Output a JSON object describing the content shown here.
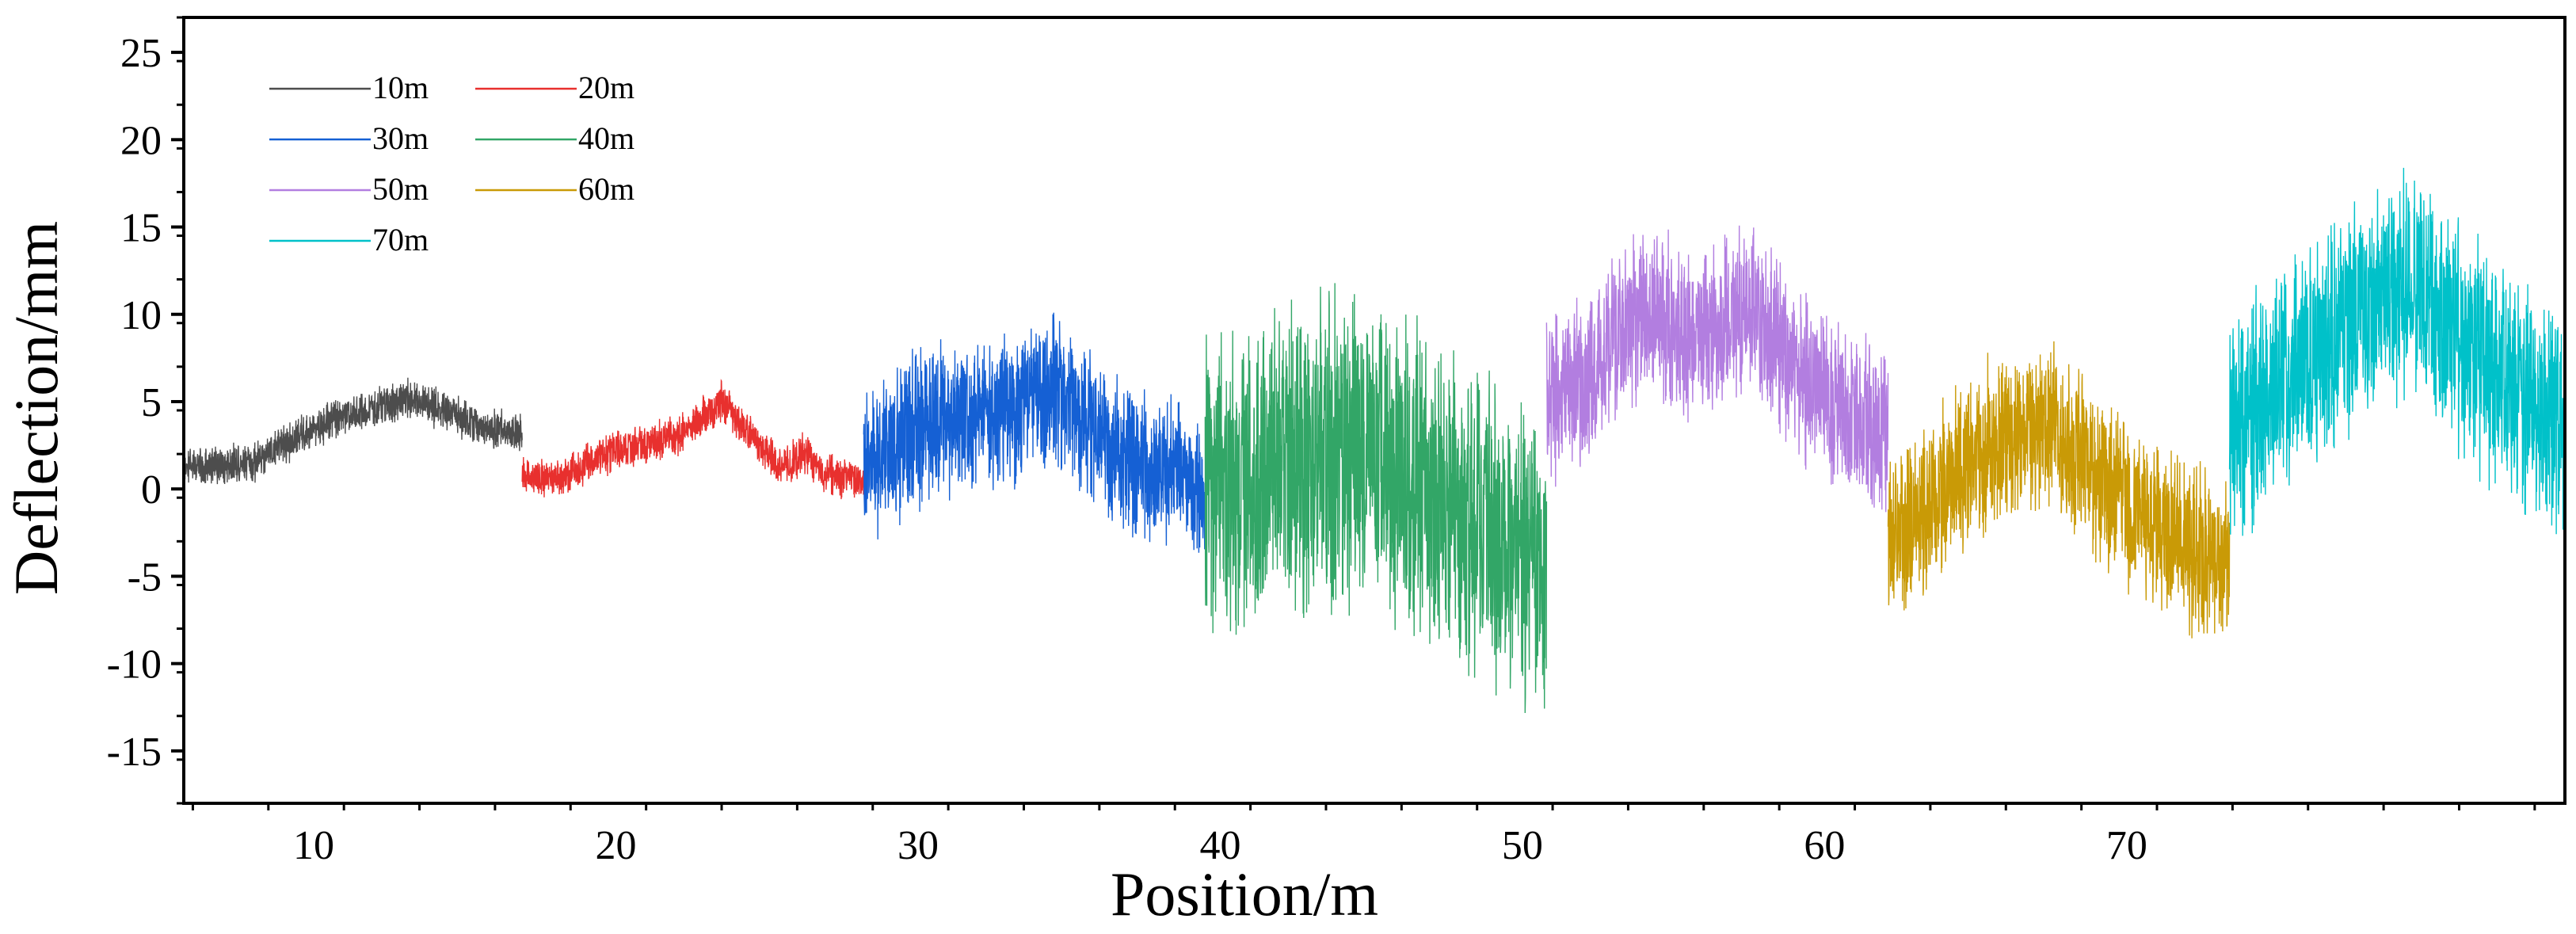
{
  "chart_data": {
    "type": "line",
    "title": "",
    "xlabel": "Position/m",
    "ylabel": "Deflection/mm",
    "xlim": [
      5.7,
      84.5
    ],
    "ylim": [
      -18,
      27
    ],
    "x_ticks": [
      10,
      20,
      30,
      40,
      50,
      60,
      70
    ],
    "y_ticks": [
      -15,
      -10,
      -5,
      0,
      5,
      10,
      15,
      20,
      25
    ],
    "grid": false,
    "legend_position": "top-left",
    "series": [
      {
        "name": "10m",
        "color": "#4d4d4d",
        "x_range": [
          5.7,
          16.9
        ],
        "profile": [
          [
            5.7,
            1.2
          ],
          [
            8.0,
            1.5
          ],
          [
            10.0,
            3.5
          ],
          [
            12.0,
            4.6
          ],
          [
            13.2,
            5.2
          ],
          [
            15.0,
            4.0
          ],
          [
            16.9,
            3.0
          ]
        ],
        "noise": 1.3
      },
      {
        "name": "20m",
        "color": "#e8302e",
        "x_range": [
          16.9,
          28.2
        ],
        "profile": [
          [
            16.9,
            1.0
          ],
          [
            18.0,
            0.5
          ],
          [
            20.0,
            2.2
          ],
          [
            22.0,
            3.0
          ],
          [
            23.5,
            5.0
          ],
          [
            24.5,
            3.0
          ],
          [
            25.5,
            1.2
          ],
          [
            26.2,
            2.0
          ],
          [
            27.0,
            0.8
          ],
          [
            28.2,
            0.5
          ]
        ],
        "noise": 1.3
      },
      {
        "name": "30m",
        "color": "#1560d4",
        "x_range": [
          28.2,
          39.5
        ],
        "profile": [
          [
            28.2,
            1.0
          ],
          [
            30.0,
            3.5
          ],
          [
            33.0,
            4.5
          ],
          [
            34.7,
            5.5
          ],
          [
            36.5,
            2.0
          ],
          [
            39.5,
            0.0
          ]
        ],
        "noise": 5.0
      },
      {
        "name": "40m",
        "color": "#32a667",
        "x_range": [
          39.5,
          50.8
        ],
        "profile": [
          [
            39.5,
            0.0
          ],
          [
            41.0,
            0.5
          ],
          [
            43.0,
            2.0
          ],
          [
            44.5,
            2.5
          ],
          [
            46.5,
            0.5
          ],
          [
            48.5,
            -2.0
          ],
          [
            50.8,
            -4.0
          ]
        ],
        "noise": 10.0
      },
      {
        "name": "50m",
        "color": "#b27ee0",
        "x_range": [
          50.8,
          62.1
        ],
        "profile": [
          [
            50.8,
            5.0
          ],
          [
            52.0,
            6.0
          ],
          [
            54.0,
            10.5
          ],
          [
            55.5,
            8.5
          ],
          [
            57.5,
            10.5
          ],
          [
            59.5,
            6.0
          ],
          [
            62.1,
            3.0
          ]
        ],
        "noise": 5.5
      },
      {
        "name": "60m",
        "color": "#c99a06",
        "x_range": [
          62.1,
          73.4
        ],
        "profile": [
          [
            62.1,
            -3.0
          ],
          [
            63.0,
            -1.5
          ],
          [
            65.0,
            2.0
          ],
          [
            66.5,
            3.5
          ],
          [
            67.5,
            3.5
          ],
          [
            69.5,
            0.0
          ],
          [
            71.5,
            -3.0
          ],
          [
            73.4,
            -4.5
          ]
        ],
        "noise": 5.5
      },
      {
        "name": "70m",
        "color": "#00c1c9",
        "x_range": [
          73.4,
          84.5
        ],
        "profile": [
          [
            73.4,
            3.0
          ],
          [
            75.0,
            6.0
          ],
          [
            77.0,
            9.0
          ],
          [
            79.0,
            11.5
          ],
          [
            80.0,
            11.0
          ],
          [
            82.0,
            7.0
          ],
          [
            84.5,
            3.5
          ]
        ],
        "noise": 7.5
      }
    ]
  }
}
